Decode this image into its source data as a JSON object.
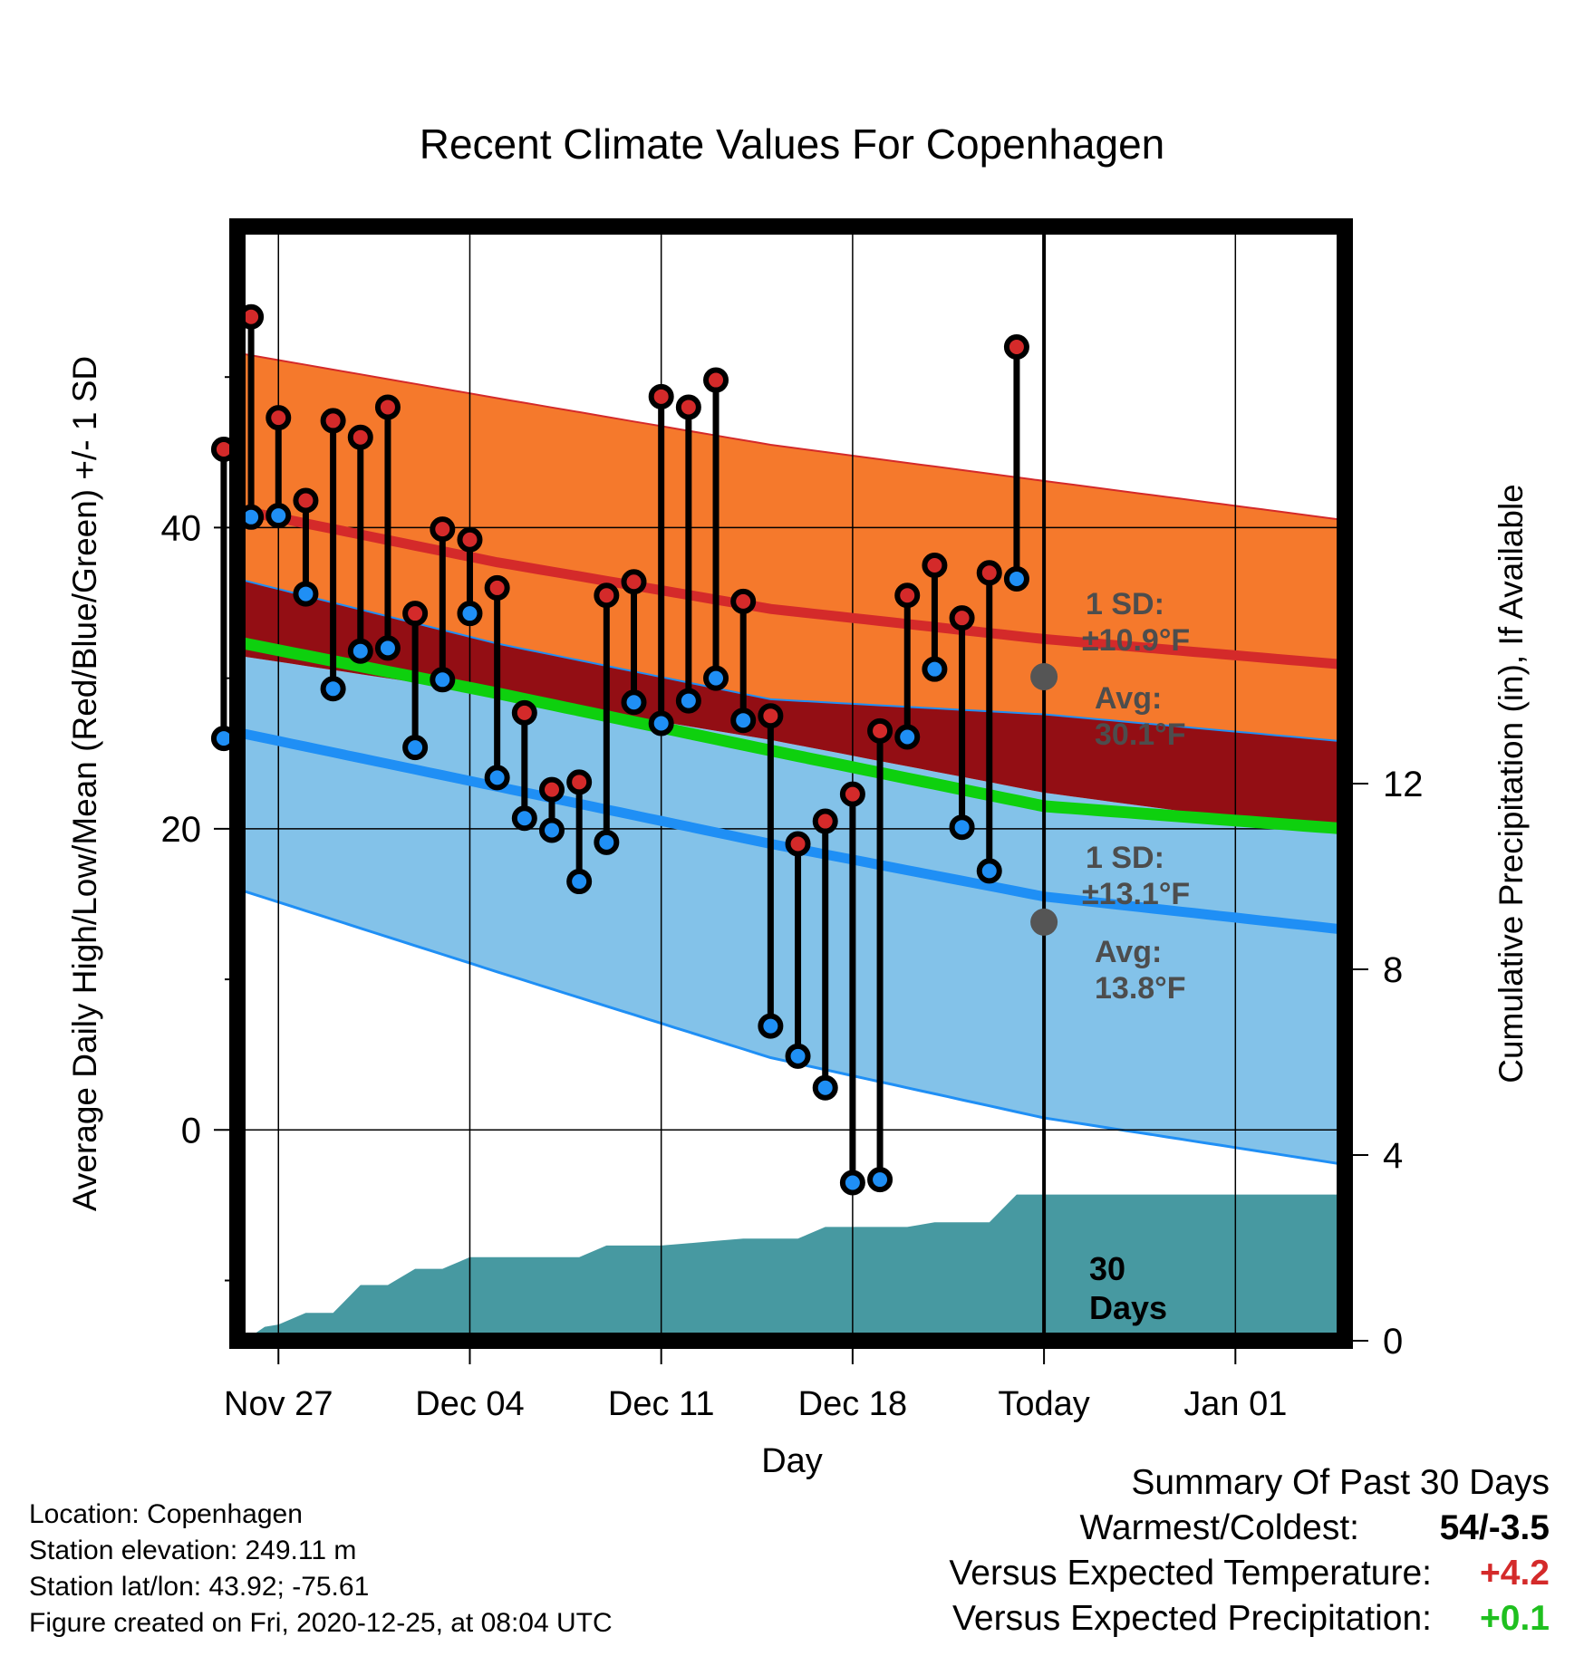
{
  "chart_data": {
    "type": "line",
    "title": "Recent Climate Values For Copenhagen",
    "xlabel": "Day",
    "ylabel_left": "Average Daily High/Low/Mean (Red/Blue/Green) +/- 1 SD",
    "ylabel_right": "Cumulative Precipitation (in), If Available",
    "x_range_days": [
      -29.5,
      11
    ],
    "ylim_left": [
      -14,
      60
    ],
    "ylim_right": [
      0,
      24
    ],
    "left_ticks": [
      {
        "v": 0,
        "label": "0"
      },
      {
        "v": 20,
        "label": "20"
      },
      {
        "v": 40,
        "label": "40"
      }
    ],
    "right_ticks": [
      {
        "v": 0,
        "label": "0"
      },
      {
        "v": 4,
        "label": "4"
      },
      {
        "v": 8,
        "label": "8"
      },
      {
        "v": 12,
        "label": "12"
      }
    ],
    "x_ticks": [
      {
        "day": -28,
        "label": "Nov 27"
      },
      {
        "day": -21,
        "label": "Dec 04"
      },
      {
        "day": -14,
        "label": "Dec 11"
      },
      {
        "day": -7,
        "label": "Dec 18"
      },
      {
        "day": 0,
        "label": "Today"
      },
      {
        "day": 7,
        "label": "Jan 01"
      }
    ],
    "normal_high": {
      "x": [
        -29.5,
        -20,
        -10,
        0,
        11
      ],
      "mean": [
        41.2,
        37.7,
        34.6,
        32.6,
        30.9
      ],
      "upper": [
        51.6,
        48.6,
        45.5,
        43.1,
        40.5
      ],
      "lower": [
        36.6,
        32.3,
        28.6,
        27.6,
        25.8
      ]
    },
    "normal_low": {
      "x": [
        -29.5,
        -20,
        -10,
        0,
        11
      ],
      "mean": [
        26.4,
        22.8,
        19.0,
        15.5,
        13.3
      ],
      "upper": [
        31.5,
        28.9,
        25.9,
        22.4,
        19.7
      ],
      "lower": [
        16.0,
        10.5,
        4.8,
        0.8,
        -2.3
      ]
    },
    "normal_mean": {
      "x": [
        -29.5,
        -20,
        -10,
        0,
        11
      ],
      "values": [
        32.4,
        29.0,
        25.2,
        21.5,
        20.0
      ]
    },
    "days": [
      -30,
      -29,
      -28,
      -27,
      -26,
      -25,
      -24,
      -23,
      -22,
      -21,
      -20,
      -19,
      -18,
      -17,
      -16,
      -15,
      -14,
      -13,
      -12,
      -11,
      -10,
      -9,
      -8,
      -7,
      -6,
      -5,
      -4,
      -3,
      -2,
      -1
    ],
    "highs": [
      45.2,
      54.0,
      47.3,
      41.8,
      47.1,
      46.0,
      48.0,
      34.3,
      39.9,
      39.2,
      36.0,
      27.7,
      22.6,
      23.1,
      35.5,
      36.4,
      48.7,
      48.0,
      49.8,
      35.1,
      27.5,
      19.0,
      20.5,
      22.3,
      26.5,
      35.5,
      37.5,
      34.0,
      37.0,
      52.0
    ],
    "lows": [
      26.0,
      40.7,
      40.8,
      35.6,
      29.3,
      31.8,
      32.0,
      25.4,
      29.9,
      34.3,
      23.4,
      20.7,
      19.9,
      16.5,
      19.1,
      28.4,
      27.0,
      28.5,
      30.0,
      27.2,
      6.9,
      4.9,
      2.8,
      -3.5,
      -3.3,
      26.1,
      30.6,
      20.1,
      17.2,
      36.6
    ],
    "annotations": {
      "high_sd_line1": "1 SD:",
      "high_sd_line2": "±10.9°F",
      "high_avg_line1": "Avg:",
      "high_avg_line2": "30.1°F",
      "high_avg_value": 30.1,
      "low_sd_line1": "1 SD:",
      "low_sd_line2": "±13.1°F",
      "low_avg_line1": "Avg:",
      "low_avg_line2": "13.8°F",
      "low_avg_value": 13.8,
      "period_line1": "30",
      "period_line2": "Days"
    },
    "precip": {
      "x": [
        -29.5,
        -29,
        -28.5,
        -28,
        -27,
        -26,
        -25,
        -24,
        -23,
        -22,
        -21,
        -20,
        -19,
        -18,
        -17,
        -16,
        -15,
        -14,
        -13,
        -12,
        -11,
        -10,
        -9,
        -8,
        -7,
        -6,
        -5,
        -4,
        -3,
        -2,
        -1,
        0,
        11
      ],
      "values": [
        0.0,
        0.1,
        0.3,
        0.35,
        0.6,
        0.6,
        1.2,
        1.2,
        1.55,
        1.55,
        1.8,
        1.8,
        1.8,
        1.8,
        1.8,
        2.05,
        2.05,
        2.05,
        2.1,
        2.15,
        2.2,
        2.2,
        2.2,
        2.45,
        2.45,
        2.45,
        2.45,
        2.55,
        2.55,
        2.55,
        3.15,
        3.15,
        3.15
      ]
    },
    "colors": {
      "high_band": "#f5792c",
      "high_line": "#d42a2a",
      "overlap_band": "#930e14",
      "low_band": "#83c2e9",
      "low_line": "#1f8ff5",
      "mean_line": "#0ed00e",
      "precip_fill": "#4799a1",
      "high_dot": "#d42a2a",
      "low_dot": "#1f8ff5",
      "annotation": "#4d4d4d"
    },
    "grid": true
  },
  "footer": {
    "location": "Location: Copenhagen",
    "elevation": "Station elevation: 249.11 m",
    "latlon": "Station lat/lon: 43.92; -75.61",
    "created": "Figure created on Fri, 2020-12-25, at 08:04 UTC"
  },
  "summary": {
    "title": "Summary Of Past 30 Days",
    "rows": [
      {
        "label": "Warmest/Coldest:",
        "value": "54/-3.5"
      },
      {
        "label": "Versus Expected Temperature:",
        "value": "+4.2"
      },
      {
        "label": "Versus Expected Precipitation:",
        "value": "+0.1"
      }
    ]
  }
}
